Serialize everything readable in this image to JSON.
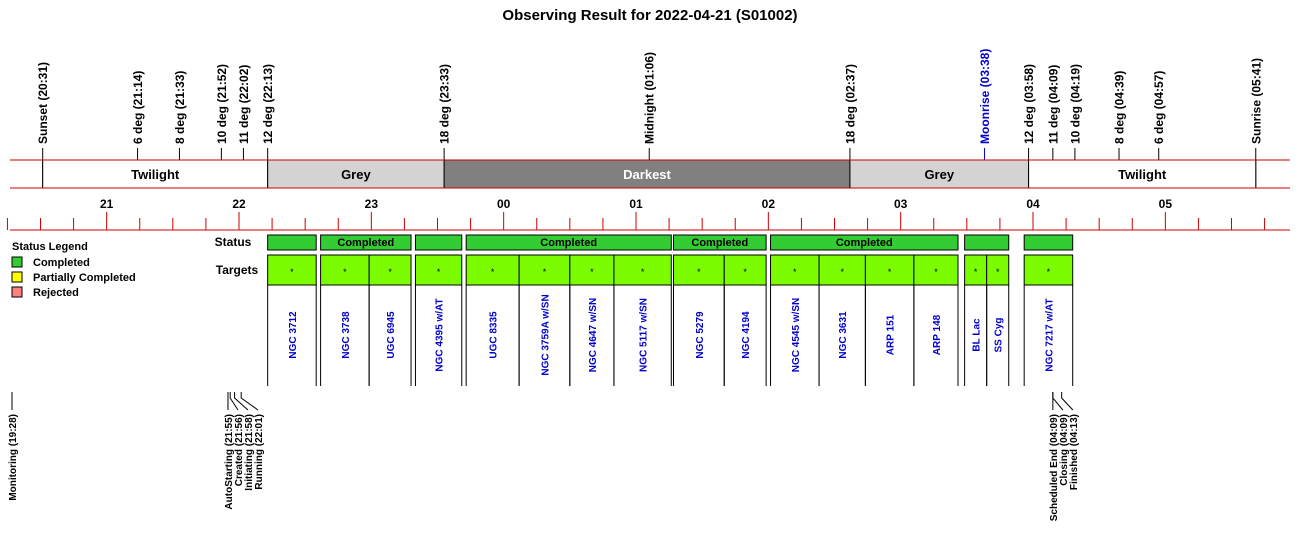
{
  "chart_data": {
    "type": "timeline",
    "title": "Observing Result for 2022-04-21 (S01002)",
    "time_axis": {
      "start": "20:15",
      "end": "05:55",
      "hour_ticks": [
        "21",
        "22",
        "23",
        "00",
        "01",
        "02",
        "03",
        "04",
        "05"
      ],
      "hour_tick_times": [
        "21:00",
        "22:00",
        "23:00",
        "00:00",
        "01:00",
        "02:00",
        "03:00",
        "04:00",
        "05:00"
      ],
      "minor_tick_interval_min": 15
    },
    "events": [
      {
        "label": "Sunset (20:31)",
        "time": "20:31",
        "color": "#000000"
      },
      {
        "label": "6 deg (21:14)",
        "time": "21:14",
        "color": "#000000"
      },
      {
        "label": "8 deg (21:33)",
        "time": "21:33",
        "color": "#000000"
      },
      {
        "label": "10 deg (21:52)",
        "time": "21:52",
        "color": "#000000"
      },
      {
        "label": "11 deg (22:02)",
        "time": "22:02",
        "color": "#000000"
      },
      {
        "label": "12 deg (22:13)",
        "time": "22:13",
        "color": "#000000"
      },
      {
        "label": "18 deg (23:33)",
        "time": "23:33",
        "color": "#000000"
      },
      {
        "label": "Midnight (01:06)",
        "time": "01:06",
        "color": "#000000"
      },
      {
        "label": "18 deg (02:37)",
        "time": "02:37",
        "color": "#000000"
      },
      {
        "label": "Moonrise (03:38)",
        "time": "03:38",
        "color": "#0000cc"
      },
      {
        "label": "12 deg (03:58)",
        "time": "03:58",
        "color": "#000000"
      },
      {
        "label": "11 deg (04:09)",
        "time": "04:09",
        "color": "#000000"
      },
      {
        "label": "10 deg (04:19)",
        "time": "04:19",
        "color": "#000000"
      },
      {
        "label": "8 deg (04:39)",
        "time": "04:39",
        "color": "#000000"
      },
      {
        "label": "6 deg (04:57)",
        "time": "04:57",
        "color": "#000000"
      },
      {
        "label": "Sunrise (05:41)",
        "time": "05:41",
        "color": "#000000"
      }
    ],
    "sky_bands": [
      {
        "label": "Twilight",
        "start": "20:31",
        "end": "22:13",
        "color": "#ffffff",
        "text_color": "#000000"
      },
      {
        "label": "Grey",
        "start": "22:13",
        "end": "23:33",
        "color": "#d3d3d3",
        "text_color": "#000000"
      },
      {
        "label": "Darkest",
        "start": "23:33",
        "end": "02:37",
        "color": "#808080",
        "text_color": "#ffffff"
      },
      {
        "label": "Grey",
        "start": "02:37",
        "end": "03:58",
        "color": "#d3d3d3",
        "text_color": "#000000"
      },
      {
        "label": "Twilight",
        "start": "03:58",
        "end": "05:41",
        "color": "#ffffff",
        "text_color": "#000000"
      }
    ],
    "row_labels": {
      "status": "Status",
      "targets": "Targets"
    },
    "status_groups": [
      {
        "label": "",
        "status": "completed",
        "start": "22:13",
        "end": "22:35"
      },
      {
        "label": "Completed",
        "status": "completed",
        "start": "22:37",
        "end": "23:18"
      },
      {
        "label": "",
        "status": "completed",
        "start": "23:20",
        "end": "23:41"
      },
      {
        "label": "Completed",
        "status": "completed",
        "start": "23:43",
        "end": "01:16"
      },
      {
        "label": "Completed",
        "status": "completed",
        "start": "01:17",
        "end": "01:59"
      },
      {
        "label": "Completed",
        "status": "completed",
        "start": "02:01",
        "end": "03:26"
      },
      {
        "label": "",
        "status": "completed",
        "start": "03:29",
        "end": "03:49"
      },
      {
        "label": "",
        "status": "completed",
        "start": "03:56",
        "end": "04:18"
      }
    ],
    "targets": [
      {
        "name": "NGC 3712",
        "marker": "*",
        "start": "22:13",
        "end": "22:35"
      },
      {
        "name": "NGC 3738",
        "marker": "*",
        "start": "22:37",
        "end": "22:59"
      },
      {
        "name": "UGC 6945",
        "marker": "*",
        "start": "22:59",
        "end": "23:18"
      },
      {
        "name": "NGC 4395 w/AT",
        "marker": "*",
        "start": "23:20",
        "end": "23:41"
      },
      {
        "name": "UGC 8335",
        "marker": "*",
        "start": "23:43",
        "end": "00:07"
      },
      {
        "name": "NGC 3759A w/SN",
        "marker": "*",
        "start": "00:07",
        "end": "00:30"
      },
      {
        "name": "NGC 4647 w/SN",
        "marker": "*",
        "start": "00:30",
        "end": "00:50"
      },
      {
        "name": "NGC 5117 w/SN",
        "marker": "*",
        "start": "00:50",
        "end": "01:16"
      },
      {
        "name": "NGC 5279",
        "marker": "*",
        "start": "01:17",
        "end": "01:40"
      },
      {
        "name": "NGC 4194",
        "marker": "*",
        "start": "01:40",
        "end": "01:59"
      },
      {
        "name": "NGC 4545 w/SN",
        "marker": "*",
        "start": "02:01",
        "end": "02:23"
      },
      {
        "name": "NGC 3631",
        "marker": "*",
        "start": "02:23",
        "end": "02:44"
      },
      {
        "name": "ARP 151",
        "marker": "*",
        "start": "02:44",
        "end": "03:06"
      },
      {
        "name": "ARP 148",
        "marker": "*",
        "start": "03:06",
        "end": "03:26"
      },
      {
        "name": "BL Lac",
        "marker": "*",
        "start": "03:29",
        "end": "03:39"
      },
      {
        "name": "SS Cyg",
        "marker": "*",
        "start": "03:39",
        "end": "03:49"
      },
      {
        "name": "NGC 7217 w/AT",
        "marker": "*",
        "start": "03:56",
        "end": "04:18"
      }
    ],
    "legend": {
      "title": "Status Legend",
      "position": "left",
      "items": [
        {
          "label": "Completed",
          "color": "#33cc33"
        },
        {
          "label": "Partially Completed",
          "color": "#ffff00"
        },
        {
          "label": "Rejected",
          "color": "#ff8080"
        }
      ]
    },
    "bottom_events": [
      {
        "label": "Monitoring (19:28)",
        "time": "19:28"
      },
      {
        "label": "AutoStarting (21:55)",
        "time": "21:55"
      },
      {
        "label": "Created (21:56)",
        "time": "21:56"
      },
      {
        "label": "Initiating (21:58)",
        "time": "21:58"
      },
      {
        "label": "Running (22:01)",
        "time": "22:01"
      },
      {
        "label": "Scheduled End (04:09)",
        "time": "04:09"
      },
      {
        "label": "Closing (04:09)",
        "time": "04:09"
      },
      {
        "label": "Finished (04:13)",
        "time": "04:13"
      }
    ],
    "colors": {
      "axis_lines": "#cc0000",
      "target_fill": "#7cfc00",
      "status_fill": "#33cc33",
      "target_text": "#0000cc"
    }
  }
}
